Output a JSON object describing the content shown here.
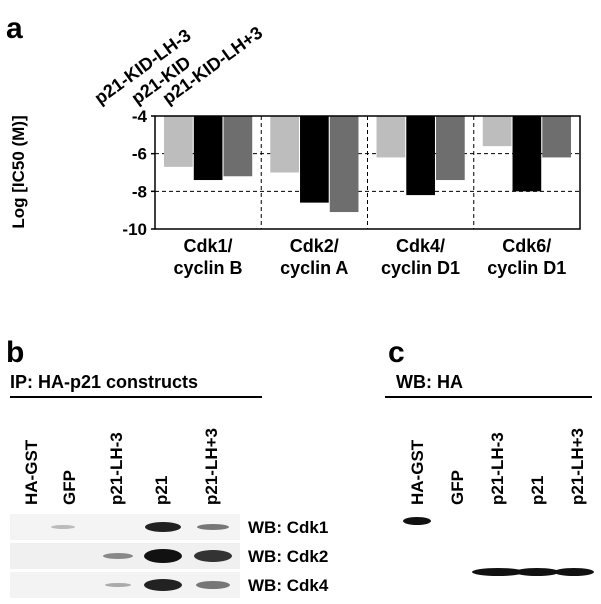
{
  "panel_labels": [
    "a",
    "b",
    "c"
  ],
  "chart_data": {
    "type": "bar",
    "y_label": "Log [IC50 (M)]",
    "categories": [
      "Cdk1/\ncyclin B",
      "Cdk2/\ncyclin A",
      "Cdk4/\ncyclin D1",
      "Cdk6/\ncyclin D1"
    ],
    "series": [
      {
        "name": "p21-KID-LH-3",
        "color": "#bdbdbd",
        "values": [
          -6.7,
          -7.0,
          -6.2,
          -5.6
        ]
      },
      {
        "name": "p21-KID",
        "color": "#000000",
        "values": [
          -7.4,
          -8.6,
          -8.2,
          -8.0
        ]
      },
      {
        "name": "p21-KID-LH+3",
        "color": "#6e6e6e",
        "values": [
          -7.2,
          -9.1,
          -7.4,
          -6.2
        ]
      }
    ],
    "ylim": [
      -10,
      -4
    ],
    "yticks": [
      -4,
      -6,
      -8,
      -10
    ],
    "grid": true
  },
  "blot_b": {
    "header": "IP: HA-p21 constructs",
    "lanes": [
      "HA-GST",
      "GFP",
      "p21-LH-3",
      "p21",
      "p21-LH+3"
    ],
    "rows": [
      "WB: Cdk1",
      "WB: Cdk2",
      "WB: Cdk4"
    ]
  },
  "blot_c": {
    "header": "WB: HA",
    "lanes": [
      "HA-GST",
      "GFP",
      "p21-LH-3",
      "p21",
      "p21-LH+3"
    ]
  }
}
